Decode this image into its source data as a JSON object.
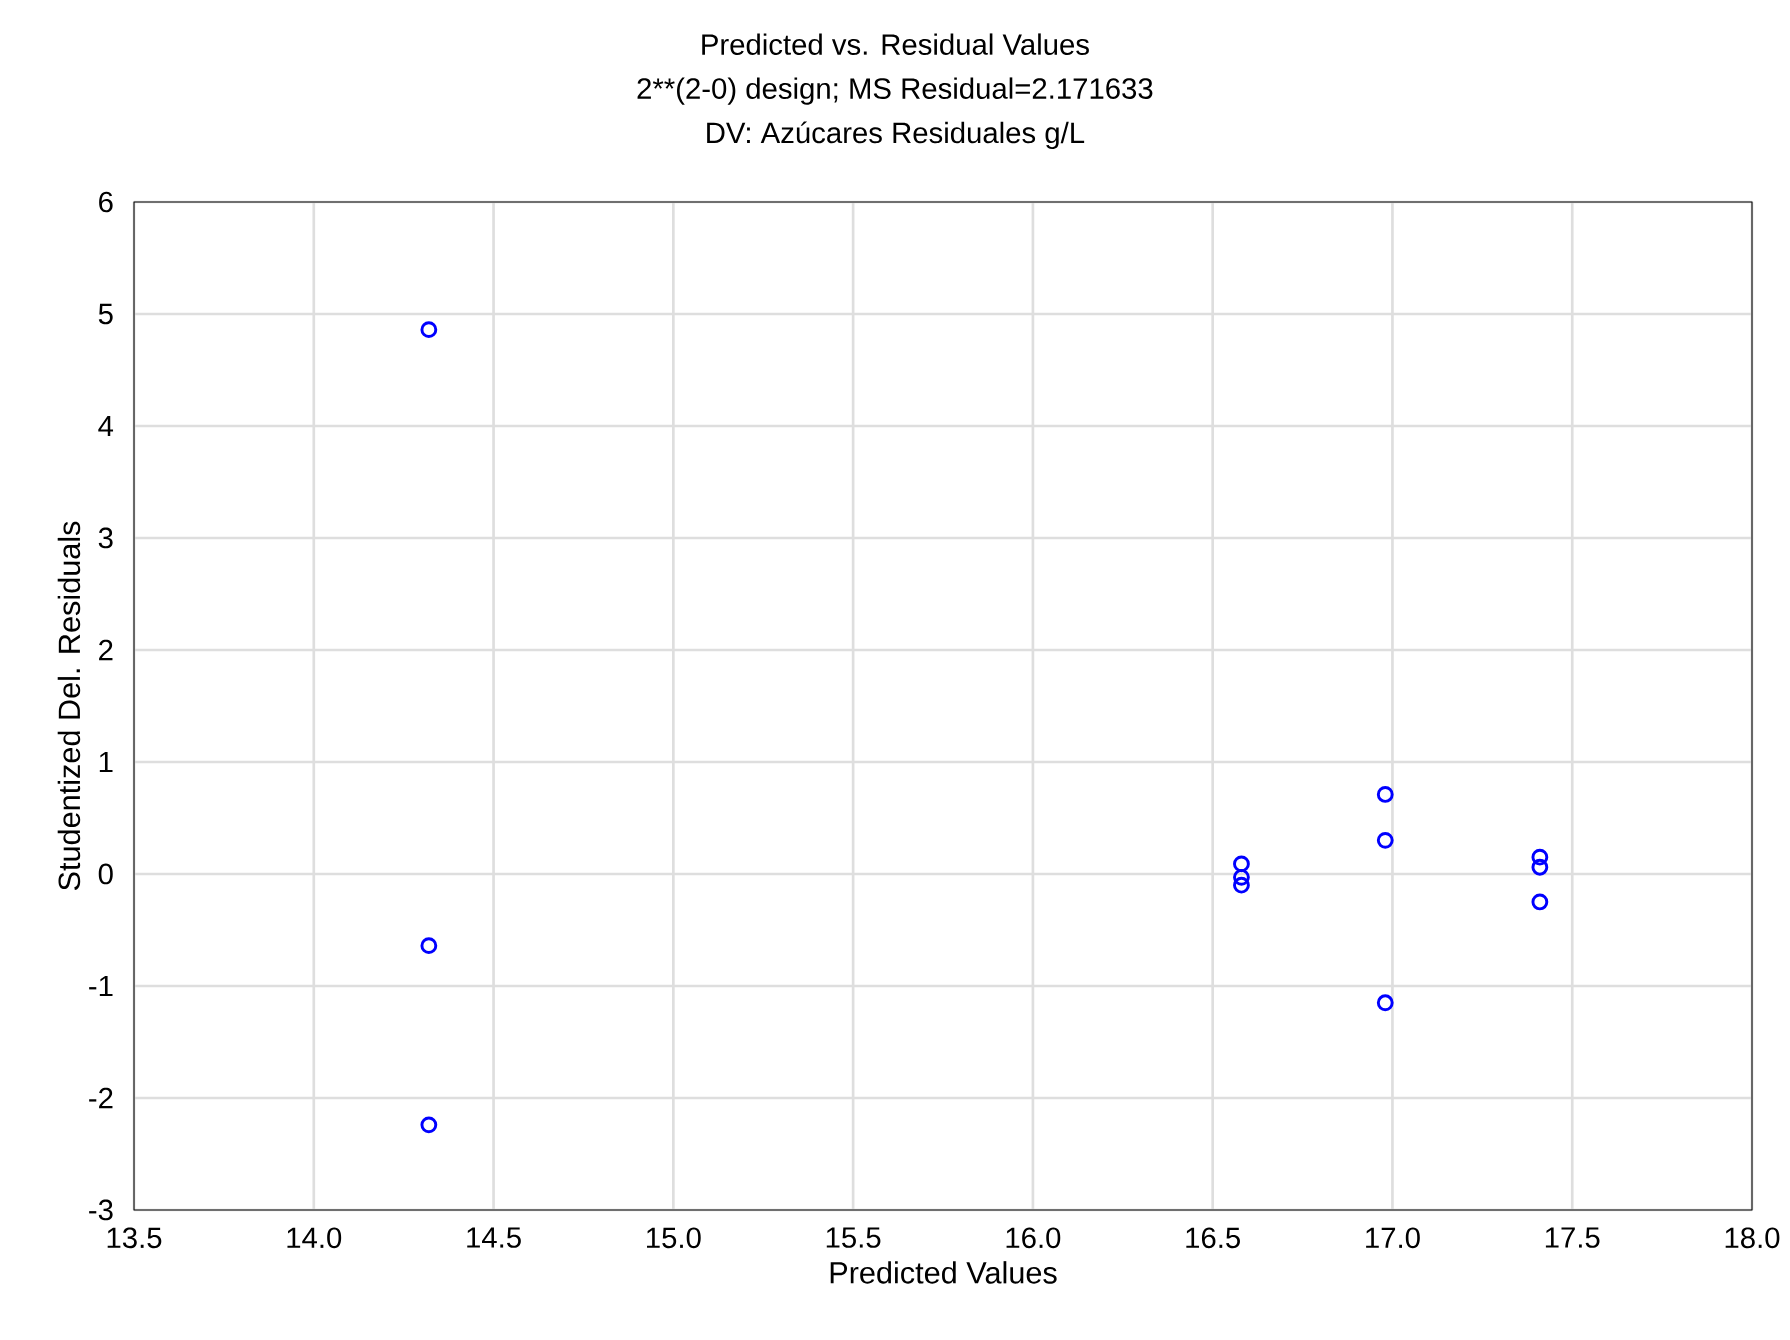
{
  "chart_data": {
    "type": "scatter",
    "title": "Predicted vs. Residual Values",
    "subtitle": "2**(2-0) design; MS Residual=2.171633",
    "annotations": [
      "DV: Azúcares Residuales g/L"
    ],
    "xlabel": "Predicted Values",
    "ylabel": "Studentized Del. Residuals",
    "x": [
      14.32,
      14.32,
      14.32,
      16.58,
      16.58,
      16.58,
      16.98,
      16.98,
      16.98,
      17.41,
      17.41,
      17.41
    ],
    "values": [
      4.86,
      -0.64,
      -2.24,
      0.09,
      -0.03,
      -0.1,
      0.71,
      0.3,
      -1.15,
      0.15,
      0.06,
      -0.25
    ],
    "color": "#0000ff",
    "marker": "circle",
    "grid": true,
    "xlim": [
      13.5,
      18.0
    ],
    "ylim": [
      -3,
      6
    ],
    "xticks": [
      13.5,
      {
        "value": 14,
        "label": "14.0"
      },
      14.5,
      {
        "value": 15,
        "label": "15.0"
      },
      15.5,
      {
        "value": 16,
        "label": "16.0"
      },
      16.5,
      {
        "value": 17,
        "label": "17.0"
      },
      17.5,
      {
        "value": 18,
        "label": "18.0"
      }
    ],
    "yticks": [
      -3,
      -2,
      -1,
      0,
      1,
      2,
      3,
      4,
      5,
      6
    ]
  }
}
